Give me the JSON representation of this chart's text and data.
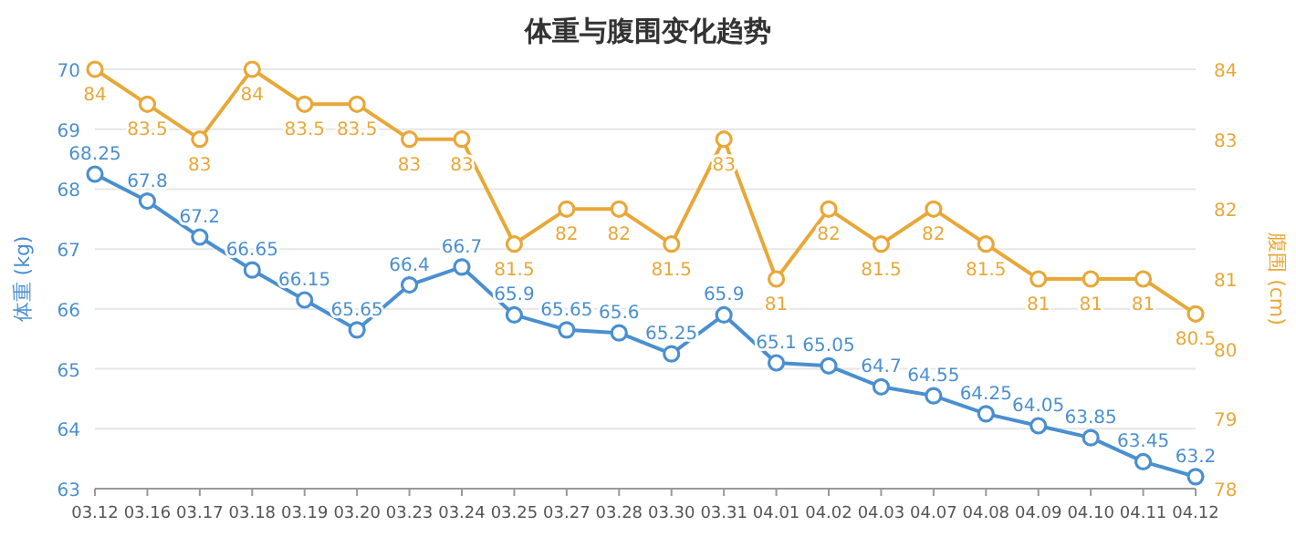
{
  "chart_data": {
    "type": "line",
    "title": "体重与腹围变化趋势",
    "ylabel": "体重 (kg)",
    "y2label": "腹围 (cm)",
    "categories": [
      "03.12",
      "03.16",
      "03.17",
      "03.18",
      "03.19",
      "03.20",
      "03.23",
      "03.24",
      "03.25",
      "03.27",
      "03.28",
      "03.30",
      "03.31",
      "04.01",
      "04.02",
      "04.03",
      "04.07",
      "04.08",
      "04.09",
      "04.10",
      "04.11",
      "04.12"
    ],
    "series": [
      {
        "color": "#4a8fd0",
        "values": [
          68.25,
          67.8,
          67.2,
          66.65,
          66.15,
          65.65,
          66.4,
          66.7,
          65.9,
          65.65,
          65.6,
          65.25,
          65.9,
          65.1,
          65.05,
          64.7,
          64.55,
          64.25,
          64.05,
          63.85,
          63.45,
          63.2
        ]
      },
      {
        "color": "#e8a838",
        "axis": "y2",
        "values": [
          84,
          83.5,
          83,
          84,
          83.5,
          83.5,
          83,
          83,
          81.5,
          82,
          82,
          81.5,
          83,
          81,
          82,
          81.5,
          82,
          81.5,
          81,
          81,
          81,
          80.5
        ]
      }
    ],
    "ylim": [
      63,
      70
    ],
    "yticks": [
      63,
      64,
      65,
      66,
      67,
      68,
      69,
      70
    ],
    "y2lim": [
      78,
      84
    ],
    "y2ticks": [
      78,
      79,
      80,
      81,
      82,
      83,
      84
    ],
    "grid": "y",
    "marker": "circle",
    "line_style": "solid",
    "data_labels": true
  }
}
